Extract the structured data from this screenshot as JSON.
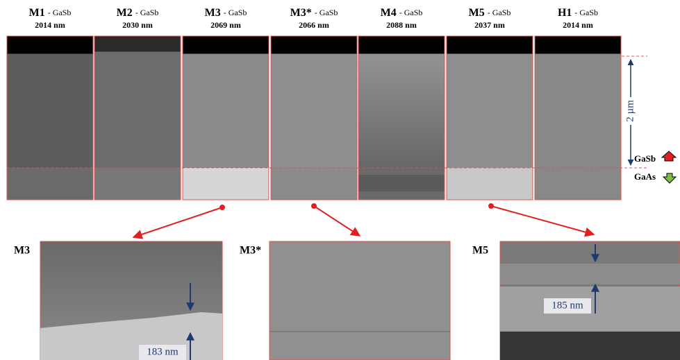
{
  "panels": [
    {
      "label": "M1",
      "substrate": "- GaSb",
      "thickness": "2014 nm"
    },
    {
      "label": "M2",
      "substrate": "- GaSb",
      "thickness": "2030 nm"
    },
    {
      "label": "M3",
      "substrate": "- GaSb",
      "thickness": "2069 nm"
    },
    {
      "label": "M3*",
      "substrate": "- GaSb",
      "thickness": "2066 nm"
    },
    {
      "label": "M4",
      "substrate": "- GaSb",
      "thickness": "2088 nm"
    },
    {
      "label": "M5",
      "substrate": "- GaSb",
      "thickness": "2037 nm"
    },
    {
      "label": "H1",
      "substrate": "- GaSb",
      "thickness": "2014 nm"
    }
  ],
  "scale_label": "2 µm",
  "layers": {
    "top": "GaSb",
    "bottom": "GaAs"
  },
  "zooms": [
    {
      "label": "M3",
      "measurement": "183 nm"
    },
    {
      "label": "M3*"
    },
    {
      "label": "M5",
      "measurement": "185 nm"
    }
  ]
}
